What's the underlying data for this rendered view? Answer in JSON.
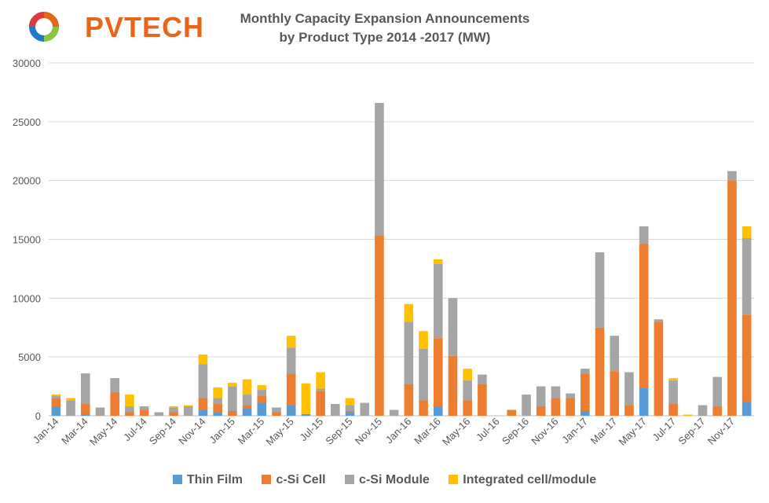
{
  "logo": {
    "text": "PVTECH"
  },
  "chart_data": {
    "type": "bar",
    "stacked": true,
    "title": "Monthly Capacity Expansion Announcements by Product Type 2014 -2017 (MW)",
    "title_lines": [
      "Monthly Capacity Expansion Announcements",
      "by Product Type 2014 -2017 (MW)"
    ],
    "ylim": [
      0,
      30000
    ],
    "yticks": [
      0,
      5000,
      10000,
      15000,
      20000,
      25000,
      30000
    ],
    "grid": true,
    "legend_position": "bottom",
    "categories": [
      "Jan-14",
      "Feb-14",
      "Mar-14",
      "Apr-14",
      "May-14",
      "Jun-14",
      "Jul-14",
      "Aug-14",
      "Sep-14",
      "Oct-14",
      "Nov-14",
      "Dec-14",
      "Jan-15",
      "Feb-15",
      "Mar-15",
      "Apr-15",
      "May-15",
      "Jun-15",
      "Jul-15",
      "Aug-15",
      "Sep-15",
      "Oct-15",
      "Nov-15",
      "Dec-15",
      "Jan-16",
      "Feb-16",
      "Mar-16",
      "Apr-16",
      "May-16",
      "Jun-16",
      "Jul-16",
      "Aug-16",
      "Sep-16",
      "Oct-16",
      "Nov-16",
      "Dec-16",
      "Jan-17",
      "Feb-17",
      "Mar-17",
      "Apr-17",
      "May-17",
      "Jun-17",
      "Jul-17",
      "Aug-17",
      "Sep-17",
      "Oct-17",
      "Nov-17",
      "Dec-17"
    ],
    "xtick_labels": [
      "Jan-14",
      "Mar-14",
      "May-14",
      "Jul-14",
      "Sep-14",
      "Nov-14",
      "Jan-15",
      "Mar-15",
      "May-15",
      "Jul-15",
      "Sep-15",
      "Nov-15",
      "Jan-16",
      "Mar-16",
      "May-16",
      "Jul-16",
      "Sep-16",
      "Nov-16",
      "Jan-17",
      "Mar-17",
      "May-17",
      "Jul-17",
      "Sep-17",
      "Nov-17"
    ],
    "series": [
      {
        "name": "Thin Film",
        "color": "#5b9bd5",
        "values": [
          800,
          0,
          100,
          0,
          0,
          0,
          0,
          0,
          0,
          0,
          500,
          300,
          0,
          600,
          1100,
          0,
          900,
          150,
          0,
          0,
          300,
          0,
          0,
          0,
          0,
          0,
          800,
          0,
          0,
          0,
          0,
          0,
          0,
          0,
          0,
          0,
          400,
          0,
          0,
          0,
          2400,
          0,
          0,
          0,
          0,
          0,
          0,
          1200
        ]
      },
      {
        "name": "c-Si Cell",
        "color": "#ed7d31",
        "values": [
          700,
          0,
          900,
          0,
          2000,
          300,
          500,
          0,
          300,
          0,
          1000,
          700,
          400,
          300,
          600,
          300,
          2700,
          0,
          2100,
          0,
          100,
          0,
          15300,
          0,
          2700,
          1300,
          5800,
          5100,
          1300,
          2700,
          0,
          500,
          0,
          800,
          1500,
          1500,
          3200,
          7500,
          3800,
          900,
          12200,
          8000,
          1000,
          0,
          0,
          800,
          20000,
          7400
        ]
      },
      {
        "name": "c-Si Module",
        "color": "#a5a5a5",
        "values": [
          200,
          1300,
          2600,
          700,
          1200,
          500,
          300,
          300,
          400,
          800,
          2900,
          500,
          2100,
          900,
          500,
          400,
          2200,
          0,
          200,
          1000,
          500,
          1100,
          11300,
          500,
          5300,
          4400,
          6300,
          4900,
          1700,
          800,
          0,
          0,
          1800,
          1700,
          1000,
          400,
          400,
          6400,
          3000,
          2800,
          1500,
          200,
          2000,
          0,
          900,
          2500,
          800,
          6500
        ]
      },
      {
        "name": "Integrated cell/module",
        "color": "#ffc000",
        "values": [
          100,
          200,
          0,
          0,
          0,
          1000,
          0,
          0,
          100,
          100,
          800,
          900,
          300,
          1300,
          400,
          0,
          1000,
          2600,
          1400,
          0,
          600,
          0,
          0,
          0,
          1500,
          1500,
          400,
          0,
          1000,
          0,
          0,
          0,
          0,
          0,
          0,
          0,
          0,
          0,
          0,
          0,
          0,
          0,
          200,
          100,
          0,
          0,
          0,
          1000
        ]
      }
    ]
  }
}
